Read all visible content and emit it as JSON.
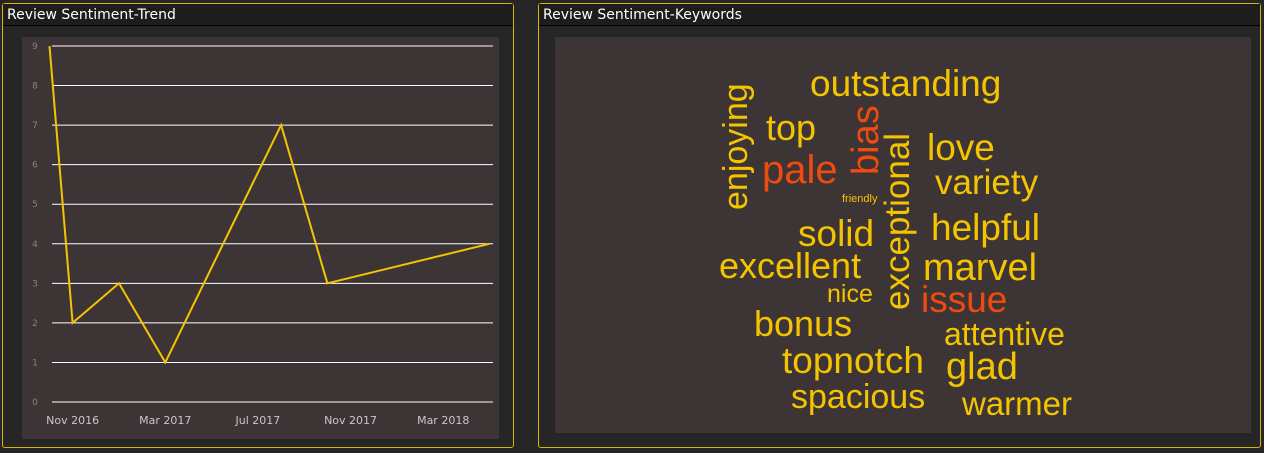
{
  "panels": {
    "trend_title": "Review Sentiment-Trend",
    "keywords_title": "Review Sentiment-Keywords"
  },
  "colors": {
    "line": "#f5c400",
    "positive_word": "#f5c400",
    "negative_word": "#f04a0f",
    "grid": "#ffffff",
    "tick_label": "#c8c8c8",
    "y_tick_label": "#8a8080"
  },
  "chart_data": [
    {
      "type": "line",
      "title": "Review Sentiment-Trend",
      "xlabel": "",
      "ylabel": "",
      "x_tick_labels": [
        "Nov 2016",
        "Mar 2017",
        "Jul 2017",
        "Nov 2017",
        "Mar 2018"
      ],
      "y_tick_labels": [
        "0",
        "1",
        "2",
        "3",
        "4",
        "5",
        "6",
        "7",
        "8",
        "9"
      ],
      "ylim": [
        0,
        9
      ],
      "grid": true,
      "series": [
        {
          "x": [
            "2016-10",
            "2016-11",
            "2017-01",
            "2017-03",
            "2017-08",
            "2017-10",
            "2018-05"
          ],
          "y": [
            9,
            2,
            3,
            1,
            7,
            3,
            4
          ]
        }
      ]
    },
    {
      "type": "wordcloud",
      "title": "Review Sentiment-Keywords",
      "words": [
        {
          "text": "outstanding",
          "sentiment": "positive",
          "vertical": false
        },
        {
          "text": "top",
          "sentiment": "positive",
          "vertical": false
        },
        {
          "text": "bias",
          "sentiment": "negative",
          "vertical": true
        },
        {
          "text": "enjoying",
          "sentiment": "positive",
          "vertical": true
        },
        {
          "text": "pale",
          "sentiment": "negative",
          "vertical": false
        },
        {
          "text": "exceptional",
          "sentiment": "positive",
          "vertical": true
        },
        {
          "text": "love",
          "sentiment": "positive",
          "vertical": false
        },
        {
          "text": "variety",
          "sentiment": "positive",
          "vertical": false
        },
        {
          "text": "friendly",
          "sentiment": "positive",
          "vertical": false
        },
        {
          "text": "solid",
          "sentiment": "positive",
          "vertical": false
        },
        {
          "text": "helpful",
          "sentiment": "positive",
          "vertical": false
        },
        {
          "text": "excellent",
          "sentiment": "positive",
          "vertical": false
        },
        {
          "text": "marvel",
          "sentiment": "positive",
          "vertical": false
        },
        {
          "text": "nice",
          "sentiment": "positive",
          "vertical": false
        },
        {
          "text": "issue",
          "sentiment": "negative",
          "vertical": false
        },
        {
          "text": "bonus",
          "sentiment": "positive",
          "vertical": false
        },
        {
          "text": "attentive",
          "sentiment": "positive",
          "vertical": false
        },
        {
          "text": "topnotch",
          "sentiment": "positive",
          "vertical": false
        },
        {
          "text": "glad",
          "sentiment": "positive",
          "vertical": false
        },
        {
          "text": "spacious",
          "sentiment": "positive",
          "vertical": false
        },
        {
          "text": "warmer",
          "sentiment": "positive",
          "vertical": false
        }
      ]
    }
  ]
}
